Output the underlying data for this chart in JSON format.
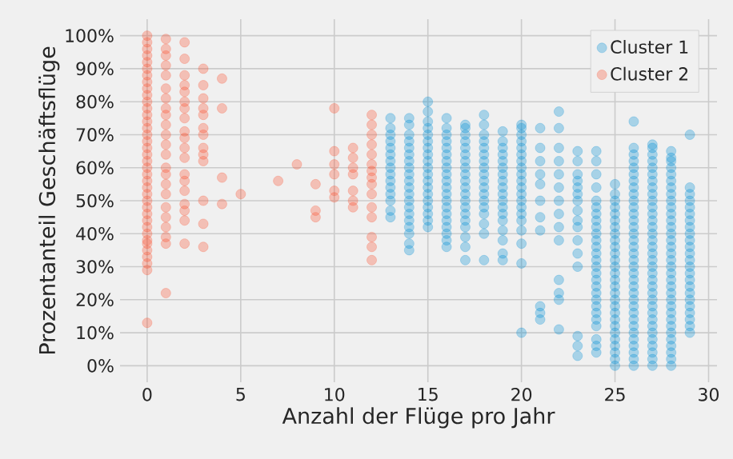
{
  "chart_data": {
    "type": "scatter",
    "xlabel": "Anzahl der Flüge pro Jahr",
    "ylabel": "Prozentanteil Geschäftsflüge",
    "xlim": [
      -1.45,
      30.45
    ],
    "ylim": [
      -5,
      105
    ],
    "xticks": [
      0,
      5,
      10,
      15,
      20,
      25,
      30
    ],
    "yticks": [
      {
        "value": 0,
        "label": "0%"
      },
      {
        "value": 10,
        "label": "10%"
      },
      {
        "value": 20,
        "label": "20%"
      },
      {
        "value": 30,
        "label": "30%"
      },
      {
        "value": 40,
        "label": "40%"
      },
      {
        "value": 50,
        "label": "50%"
      },
      {
        "value": 60,
        "label": "60%"
      },
      {
        "value": 70,
        "label": "70%"
      },
      {
        "value": 80,
        "label": "80%"
      },
      {
        "value": 90,
        "label": "90%"
      },
      {
        "value": 100,
        "label": "100%"
      }
    ],
    "grid": true,
    "legend": "top right",
    "series": [
      {
        "name": "Cluster 1",
        "color": "#008fd5",
        "x": [
          13,
          13,
          13,
          13,
          13,
          13,
          13,
          13,
          13,
          13,
          13,
          13,
          13,
          13,
          13,
          14,
          14,
          14,
          14,
          14,
          14,
          14,
          14,
          14,
          14,
          14,
          14,
          14,
          14,
          14,
          14,
          14,
          14,
          14,
          14,
          15,
          15,
          15,
          15,
          15,
          15,
          15,
          15,
          15,
          15,
          15,
          15,
          15,
          15,
          15,
          15,
          15,
          15,
          15,
          16,
          16,
          16,
          16,
          16,
          16,
          16,
          16,
          16,
          16,
          16,
          16,
          16,
          16,
          16,
          16,
          16,
          16,
          16,
          16,
          17,
          17,
          17,
          17,
          17,
          17,
          17,
          17,
          17,
          17,
          17,
          17,
          17,
          17,
          17,
          17,
          17,
          17,
          17,
          17,
          18,
          18,
          18,
          18,
          18,
          18,
          18,
          18,
          18,
          18,
          18,
          18,
          18,
          18,
          18,
          18,
          18,
          18,
          19,
          19,
          19,
          19,
          19,
          19,
          19,
          19,
          19,
          19,
          19,
          19,
          19,
          19,
          19,
          19,
          19,
          19,
          20,
          20,
          20,
          20,
          20,
          20,
          20,
          20,
          20,
          20,
          20,
          20,
          20,
          20,
          20,
          20,
          20,
          20,
          20,
          20,
          21,
          21,
          21,
          21,
          21,
          21,
          21,
          21,
          21,
          21,
          21,
          22,
          22,
          22,
          22,
          22,
          22,
          22,
          22,
          22,
          22,
          22,
          22,
          22,
          22,
          23,
          23,
          23,
          23,
          23,
          23,
          23,
          23,
          23,
          23,
          23,
          23,
          23,
          23,
          23,
          23,
          24,
          24,
          24,
          24,
          24,
          24,
          24,
          24,
          24,
          24,
          24,
          24,
          24,
          24,
          24,
          24,
          24,
          24,
          24,
          24,
          24,
          24,
          24,
          24,
          24,
          24,
          24,
          25,
          25,
          25,
          25,
          25,
          25,
          25,
          25,
          25,
          25,
          25,
          25,
          25,
          25,
          25,
          25,
          25,
          25,
          25,
          25,
          25,
          25,
          25,
          25,
          25,
          25,
          25,
          25,
          26,
          26,
          26,
          26,
          26,
          26,
          26,
          26,
          26,
          26,
          26,
          26,
          26,
          26,
          26,
          26,
          26,
          26,
          26,
          26,
          26,
          26,
          26,
          26,
          26,
          26,
          26,
          26,
          26,
          26,
          26,
          26,
          26,
          26,
          26,
          27,
          27,
          27,
          27,
          27,
          27,
          27,
          27,
          27,
          27,
          27,
          27,
          27,
          27,
          27,
          27,
          27,
          27,
          27,
          27,
          27,
          27,
          27,
          27,
          27,
          27,
          27,
          27,
          27,
          27,
          27,
          27,
          27,
          27,
          27,
          28,
          28,
          28,
          28,
          28,
          28,
          28,
          28,
          28,
          28,
          28,
          28,
          28,
          28,
          28,
          28,
          28,
          28,
          28,
          28,
          28,
          28,
          28,
          28,
          28,
          28,
          28,
          28,
          28,
          28,
          28,
          28,
          28,
          28,
          29,
          29,
          29,
          29,
          29,
          29,
          29,
          29,
          29,
          29,
          29,
          29,
          29,
          29,
          29,
          29,
          29,
          29,
          29,
          29,
          29,
          29,
          29,
          29
        ],
        "values": [
          45,
          47,
          50,
          52,
          54,
          56,
          58,
          60,
          62,
          64,
          66,
          68,
          70,
          72,
          75,
          35,
          37,
          40,
          42,
          44,
          46,
          48,
          50,
          52,
          54,
          56,
          58,
          60,
          62,
          64,
          66,
          68,
          70,
          73,
          75,
          42,
          44,
          46,
          48,
          50,
          52,
          54,
          56,
          58,
          60,
          62,
          64,
          66,
          68,
          70,
          72,
          74,
          77,
          80,
          36,
          38,
          40,
          42,
          44,
          46,
          48,
          50,
          52,
          54,
          56,
          58,
          60,
          62,
          64,
          66,
          68,
          70,
          72,
          75,
          32,
          36,
          39,
          42,
          44,
          46,
          48,
          50,
          52,
          54,
          56,
          58,
          60,
          62,
          64,
          66,
          68,
          70,
          72,
          73,
          32,
          40,
          43,
          46,
          48,
          50,
          52,
          54,
          56,
          58,
          60,
          62,
          64,
          66,
          68,
          70,
          73,
          76,
          32,
          34,
          38,
          41,
          44,
          46,
          48,
          50,
          52,
          54,
          56,
          58,
          60,
          62,
          64,
          66,
          68,
          71,
          10,
          31,
          37,
          41,
          44,
          46,
          48,
          50,
          52,
          54,
          56,
          58,
          60,
          62,
          64,
          66,
          68,
          70,
          72,
          73,
          14,
          16,
          18,
          41,
          45,
          50,
          55,
          58,
          62,
          66,
          72,
          11,
          20,
          22,
          26,
          38,
          42,
          46,
          50,
          54,
          58,
          62,
          66,
          72,
          77,
          3,
          6,
          9,
          30,
          34,
          38,
          42,
          44,
          47,
          50,
          52,
          54,
          56,
          58,
          62,
          65,
          4,
          6,
          8,
          12,
          14,
          16,
          18,
          20,
          22,
          24,
          26,
          28,
          30,
          32,
          34,
          36,
          38,
          40,
          42,
          44,
          46,
          48,
          50,
          54,
          58,
          62,
          65,
          0,
          2,
          4,
          6,
          8,
          10,
          12,
          14,
          16,
          18,
          20,
          22,
          24,
          26,
          28,
          30,
          32,
          34,
          36,
          38,
          40,
          42,
          44,
          46,
          48,
          50,
          52,
          55,
          0,
          2,
          4,
          6,
          8,
          10,
          12,
          14,
          16,
          18,
          20,
          22,
          24,
          26,
          28,
          30,
          32,
          34,
          36,
          38,
          40,
          42,
          44,
          46,
          48,
          50,
          52,
          54,
          56,
          58,
          60,
          62,
          64,
          66,
          74,
          0,
          2,
          4,
          6,
          8,
          10,
          12,
          14,
          16,
          18,
          20,
          22,
          24,
          26,
          28,
          30,
          32,
          34,
          36,
          38,
          40,
          42,
          44,
          46,
          48,
          50,
          52,
          54,
          56,
          58,
          60,
          62,
          64,
          66,
          67,
          0,
          2,
          4,
          6,
          8,
          10,
          12,
          14,
          16,
          18,
          20,
          22,
          24,
          26,
          28,
          30,
          32,
          34,
          36,
          38,
          40,
          42,
          44,
          46,
          48,
          50,
          52,
          54,
          56,
          58,
          60,
          62,
          63,
          65,
          10,
          12,
          14,
          16,
          18,
          20,
          22,
          24,
          26,
          28,
          30,
          32,
          34,
          36,
          38,
          40,
          42,
          44,
          46,
          48,
          50,
          52,
          54,
          70
        ]
      },
      {
        "name": "Cluster 2",
        "color": "#fc4f30",
        "x": [
          0,
          0,
          0,
          0,
          0,
          0,
          0,
          0,
          0,
          0,
          0,
          0,
          0,
          0,
          0,
          0,
          0,
          0,
          0,
          0,
          0,
          0,
          0,
          0,
          0,
          0,
          0,
          0,
          0,
          0,
          0,
          0,
          0,
          0,
          0,
          0,
          0,
          0,
          1,
          1,
          1,
          1,
          1,
          1,
          1,
          1,
          1,
          1,
          1,
          1,
          1,
          1,
          1,
          1,
          1,
          1,
          1,
          1,
          1,
          1,
          1,
          2,
          2,
          2,
          2,
          2,
          2,
          2,
          2,
          2,
          2,
          2,
          2,
          2,
          2,
          2,
          2,
          2,
          2,
          2,
          3,
          3,
          3,
          3,
          3,
          3,
          3,
          3,
          3,
          3,
          3,
          3,
          3,
          4,
          4,
          4,
          4,
          5,
          7,
          8,
          9,
          9,
          9,
          10,
          10,
          10,
          10,
          10,
          10,
          11,
          11,
          11,
          11,
          11,
          11,
          11,
          12,
          12,
          12,
          12,
          12,
          12,
          12,
          12,
          12,
          12,
          12,
          12,
          12,
          12,
          12
        ],
        "values": [
          13,
          29,
          31,
          33,
          35,
          37,
          38,
          40,
          42,
          44,
          46,
          48,
          50,
          52,
          54,
          56,
          58,
          60,
          62,
          64,
          66,
          68,
          70,
          72,
          74,
          76,
          78,
          80,
          82,
          84,
          86,
          88,
          90,
          92,
          94,
          96,
          98,
          100,
          22,
          37,
          39,
          42,
          45,
          48,
          52,
          55,
          58,
          60,
          64,
          67,
          70,
          73,
          76,
          78,
          81,
          84,
          88,
          91,
          94,
          96,
          99,
          37,
          44,
          47,
          49,
          53,
          56,
          58,
          63,
          66,
          69,
          71,
          75,
          78,
          80,
          83,
          85,
          88,
          93,
          98,
          36,
          43,
          50,
          62,
          64,
          66,
          70,
          72,
          76,
          78,
          81,
          85,
          90,
          49,
          57,
          78,
          87,
          52,
          56,
          61,
          45,
          47,
          55,
          51,
          53,
          58,
          61,
          65,
          78,
          48,
          50,
          53,
          58,
          60,
          63,
          66,
          32,
          36,
          39,
          45,
          48,
          52,
          55,
          57,
          59,
          61,
          64,
          67,
          70,
          73,
          76
        ]
      }
    ]
  }
}
